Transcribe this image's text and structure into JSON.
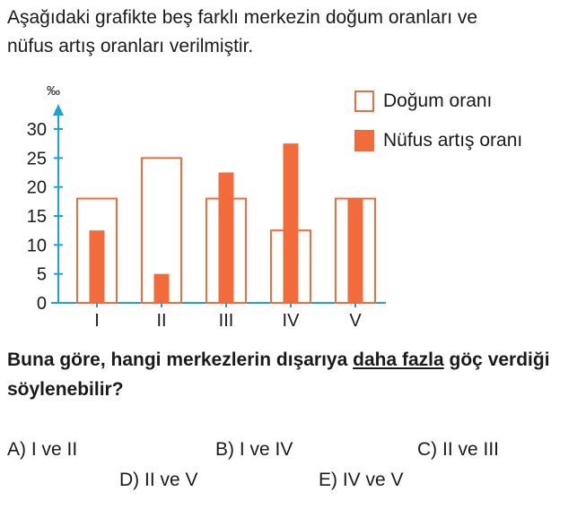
{
  "intro": {
    "line1": "Aşağıdaki grafikte beş farklı merkezin doğum oranları ve",
    "line2": "nüfus artış oranları verilmiştir."
  },
  "colors": {
    "accent": "#f26b3a",
    "axis": "#1ba3d8"
  },
  "legend": {
    "birth": "Doğum oranı",
    "growth": "Nüfus artış oranı"
  },
  "chart_data": {
    "type": "bar",
    "ylabel": "‰",
    "ylim": [
      0,
      30
    ],
    "yticks": [
      0,
      5,
      10,
      15,
      20,
      25,
      30
    ],
    "categories": [
      "I",
      "II",
      "III",
      "IV",
      "V"
    ],
    "series": [
      {
        "name": "Doğum oranı",
        "style": "outline",
        "values": [
          18,
          25,
          18,
          12.5,
          18
        ]
      },
      {
        "name": "Nüfus artış oranı",
        "style": "filled",
        "values": [
          12.5,
          5,
          22.5,
          27.5,
          18
        ]
      }
    ]
  },
  "question": {
    "part1": "Buna göre, hangi merkezlerin dışarıya",
    "underlined": "daha fazla",
    "part2": "göç verdiği söylenebilir?"
  },
  "options": {
    "a": "A) I ve II",
    "b": "B) I ve IV",
    "c": "C) II ve III",
    "d": "D) II ve V",
    "e": "E) IV ve V"
  }
}
